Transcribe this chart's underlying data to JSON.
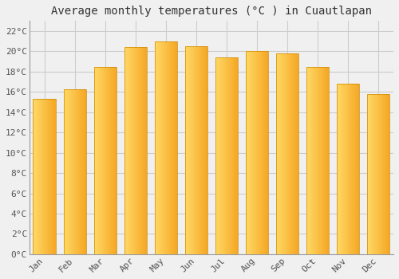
{
  "title": "Average monthly temperatures (°C ) in Cuautlapan",
  "months": [
    "Jan",
    "Feb",
    "Mar",
    "Apr",
    "May",
    "Jun",
    "Jul",
    "Aug",
    "Sep",
    "Oct",
    "Nov",
    "Dec"
  ],
  "values": [
    15.3,
    16.3,
    18.5,
    20.4,
    21.0,
    20.5,
    19.4,
    20.0,
    19.8,
    18.5,
    16.8,
    15.8
  ],
  "bar_color_left": "#FFD966",
  "bar_color_right": "#F5A623",
  "background_color": "#F0F0F0",
  "plot_bg_color": "#F0F0F0",
  "grid_color": "#CCCCCC",
  "ytick_labels": [
    "0°C",
    "2°C",
    "4°C",
    "6°C",
    "8°C",
    "10°C",
    "12°C",
    "14°C",
    "16°C",
    "18°C",
    "20°C",
    "22°C"
  ],
  "ytick_values": [
    0,
    2,
    4,
    6,
    8,
    10,
    12,
    14,
    16,
    18,
    20,
    22
  ],
  "ylim": [
    0,
    23
  ],
  "title_fontsize": 10,
  "tick_fontsize": 8,
  "font_family": "monospace"
}
